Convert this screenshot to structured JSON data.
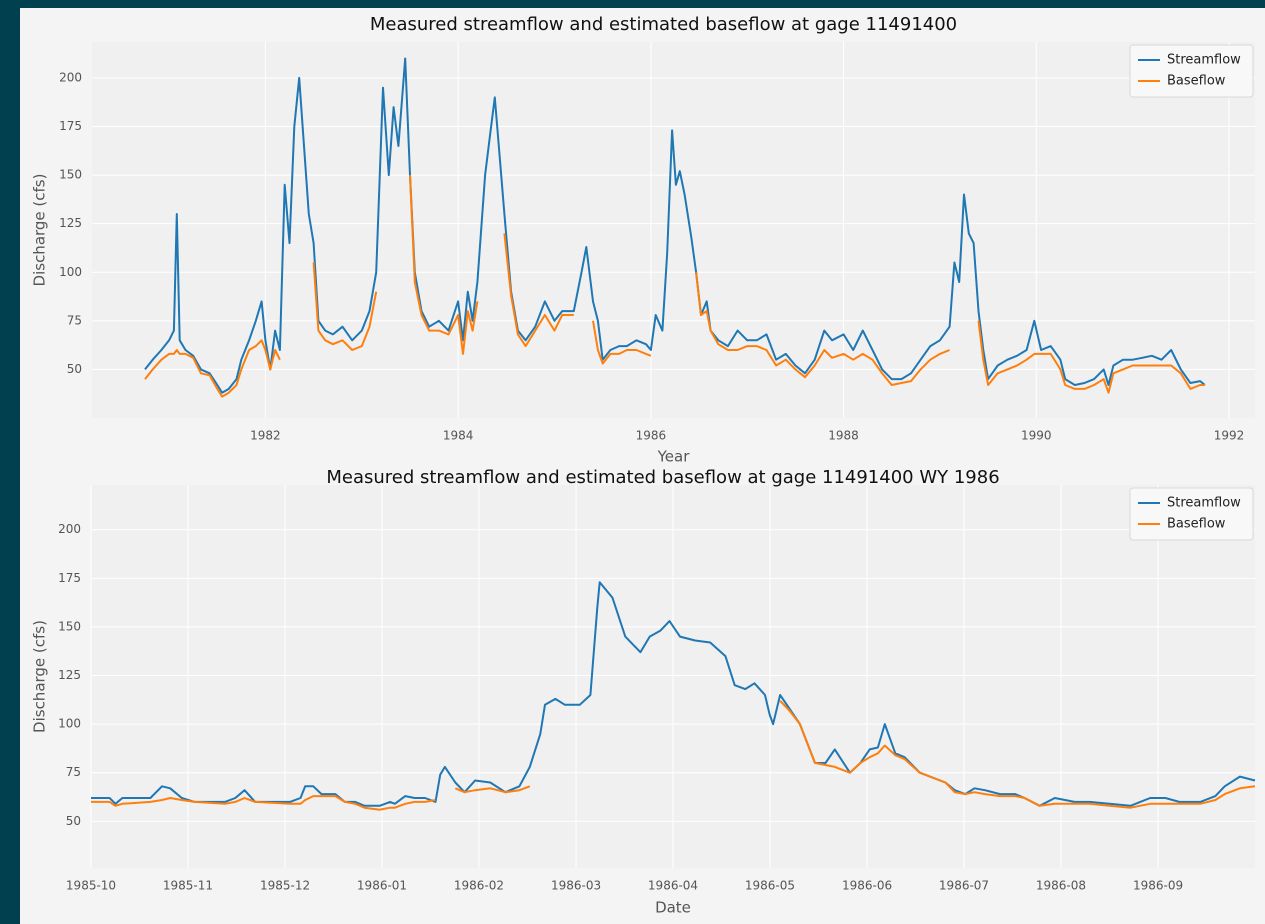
{
  "chart_data": [
    {
      "type": "line",
      "title": "Measured streamflow and estimated baseflow at gage 11491400",
      "xlabel": "Year",
      "ylabel": "Discharge (cfs)",
      "x": [
        1980.75,
        1980.83,
        1980.92,
        1981.0,
        1981.05,
        1981.08,
        1981.11,
        1981.17,
        1981.25,
        1981.33,
        1981.42,
        1981.5,
        1981.55,
        1981.62,
        1981.7,
        1981.75,
        1981.83,
        1981.9,
        1981.96,
        1982.0,
        1982.05,
        1982.1,
        1982.15,
        1982.2,
        1982.25,
        1982.3,
        1982.35,
        1982.4,
        1982.45,
        1982.5,
        1982.55,
        1982.62,
        1982.7,
        1982.8,
        1982.9,
        1983.0,
        1983.08,
        1983.15,
        1983.22,
        1983.28,
        1983.33,
        1983.38,
        1983.45,
        1983.5,
        1983.55,
        1983.62,
        1983.7,
        1983.8,
        1983.9,
        1984.0,
        1984.05,
        1984.1,
        1984.15,
        1984.2,
        1984.28,
        1984.33,
        1984.38,
        1984.43,
        1984.48,
        1984.55,
        1984.62,
        1984.7,
        1984.8,
        1984.9,
        1985.0,
        1985.08,
        1985.2,
        1985.28,
        1985.33,
        1985.4,
        1985.45,
        1985.5,
        1985.58,
        1985.67,
        1985.75,
        1985.85,
        1985.95,
        1986.0,
        1986.05,
        1986.12,
        1986.17,
        1986.22,
        1986.26,
        1986.3,
        1986.35,
        1986.42,
        1986.47,
        1986.52,
        1986.58,
        1986.62,
        1986.7,
        1986.8,
        1986.9,
        1987.0,
        1987.1,
        1987.2,
        1987.3,
        1987.4,
        1987.5,
        1987.6,
        1987.7,
        1987.8,
        1987.88,
        1988.0,
        1988.1,
        1988.2,
        1988.3,
        1988.4,
        1988.5,
        1988.6,
        1988.7,
        1988.8,
        1988.9,
        1989.0,
        1989.1,
        1989.15,
        1989.2,
        1989.25,
        1989.3,
        1989.35,
        1989.4,
        1989.45,
        1989.5,
        1989.6,
        1989.7,
        1989.8,
        1989.9,
        1989.98,
        1990.05,
        1990.15,
        1990.25,
        1990.3,
        1990.4,
        1990.5,
        1990.6,
        1990.7,
        1990.75,
        1990.8,
        1990.9,
        1991.0,
        1991.1,
        1991.2,
        1991.3,
        1991.4,
        1991.5,
        1991.6,
        1991.7,
        1991.75
      ],
      "series": [
        {
          "name": "Streamflow",
          "color": "#1f77b4",
          "values": [
            50,
            55,
            60,
            65,
            70,
            130,
            65,
            60,
            57,
            50,
            48,
            42,
            38,
            40,
            45,
            55,
            65,
            75,
            85,
            65,
            50,
            70,
            60,
            145,
            115,
            175,
            200,
            165,
            130,
            115,
            75,
            70,
            68,
            72,
            65,
            70,
            80,
            100,
            195,
            150,
            185,
            165,
            210,
            150,
            100,
            80,
            72,
            75,
            70,
            85,
            65,
            90,
            75,
            95,
            150,
            170,
            190,
            160,
            130,
            90,
            70,
            65,
            72,
            85,
            75,
            80,
            80,
            100,
            113,
            85,
            75,
            55,
            60,
            62,
            62,
            65,
            63,
            60,
            78,
            70,
            110,
            173,
            145,
            152,
            140,
            118,
            100,
            78,
            85,
            70,
            65,
            62,
            70,
            65,
            65,
            68,
            55,
            58,
            52,
            48,
            55,
            70,
            65,
            68,
            60,
            70,
            60,
            50,
            45,
            45,
            48,
            55,
            62,
            65,
            72,
            105,
            95,
            140,
            120,
            115,
            80,
            60,
            45,
            52,
            55,
            57,
            60,
            75,
            60,
            62,
            55,
            45,
            42,
            43,
            45,
            50,
            42,
            52,
            55,
            55,
            56,
            57,
            55,
            60,
            50,
            43,
            44,
            42
          ]
        },
        {
          "name": "Baseflow",
          "color": "#ff7f0e",
          "values": [
            45,
            50,
            55,
            58,
            58,
            60,
            58,
            58,
            56,
            48,
            47,
            40,
            36,
            38,
            42,
            50,
            60,
            62,
            65,
            60,
            50,
            60,
            55,
            null,
            105,
            null,
            null,
            null,
            null,
            105,
            70,
            65,
            63,
            65,
            60,
            62,
            72,
            90,
            null,
            null,
            120,
            null,
            null,
            150,
            95,
            78,
            70,
            70,
            68,
            78,
            58,
            80,
            70,
            85,
            null,
            null,
            null,
            null,
            120,
            88,
            68,
            62,
            70,
            78,
            70,
            78,
            78,
            null,
            null,
            75,
            60,
            53,
            58,
            58,
            60,
            60,
            58,
            57,
            null,
            66,
            null,
            null,
            null,
            null,
            null,
            null,
            100,
            78,
            80,
            70,
            63,
            60,
            60,
            62,
            62,
            60,
            52,
            55,
            50,
            46,
            52,
            60,
            56,
            58,
            55,
            58,
            55,
            48,
            42,
            43,
            44,
            50,
            55,
            58,
            60,
            null,
            null,
            null,
            null,
            null,
            75,
            55,
            42,
            48,
            50,
            52,
            55,
            58,
            58,
            58,
            50,
            42,
            40,
            40,
            42,
            45,
            38,
            48,
            50,
            52,
            52,
            52,
            52,
            52,
            48,
            40,
            42,
            42
          ]
        }
      ],
      "xlim": [
        1980.2,
        1992.27
      ],
      "ylim": [
        25,
        218.5
      ],
      "xticks": [
        1982,
        1984,
        1986,
        1988,
        1990,
        1992
      ],
      "yticks": [
        50,
        75,
        100,
        125,
        150,
        175,
        200
      ],
      "grid": true,
      "legend": "upper right"
    },
    {
      "type": "line",
      "title": "Measured streamflow and estimated baseflow at gage 11491400 WY 1986",
      "xlabel": "Date",
      "ylabel": "Discharge (cfs)",
      "x": [
        1985.75,
        1985.766,
        1985.771,
        1985.777,
        1985.801,
        1985.811,
        1985.818,
        1985.828,
        1985.839,
        1985.865,
        1985.874,
        1985.882,
        1985.891,
        1985.921,
        1985.93,
        1985.934,
        1985.941,
        1985.948,
        1985.96,
        1985.968,
        1985.977,
        1985.985,
        1985.998,
        1986.007,
        1986.011,
        1986.02,
        1986.028,
        1986.037,
        1986.046,
        1986.05,
        1986.054,
        1986.063,
        1986.071,
        1986.08,
        1986.093,
        1986.106,
        1986.118,
        1986.127,
        1986.136,
        1986.14,
        1986.149,
        1986.157,
        1986.17,
        1986.179,
        1986.185,
        1986.187,
        1986.198,
        1986.209,
        1986.222,
        1986.23,
        1986.239,
        1986.247,
        1986.256,
        1986.269,
        1986.282,
        1986.295,
        1986.303,
        1986.312,
        1986.32,
        1986.329,
        1986.333,
        1986.336,
        1986.342,
        1986.35,
        1986.359,
        1986.372,
        1986.381,
        1986.389,
        1986.402,
        1986.411,
        1986.419,
        1986.426,
        1986.432,
        1986.441,
        1986.449,
        1986.462,
        1986.484,
        1986.492,
        1986.501,
        1986.509,
        1986.518,
        1986.531,
        1986.544,
        1986.552,
        1986.565,
        1986.578,
        1986.595,
        1986.608,
        1986.625,
        1986.643,
        1986.66,
        1986.673,
        1986.685,
        1986.703,
        1986.716,
        1986.724,
        1986.737,
        1986.75
      ],
      "series": [
        {
          "name": "Streamflow",
          "color": "#1f77b4",
          "values": [
            62,
            62,
            59,
            62,
            62,
            68,
            67,
            62,
            60,
            60,
            62,
            66,
            60,
            60,
            62,
            68,
            68,
            64,
            64,
            60,
            60,
            58,
            58,
            60,
            59,
            63,
            62,
            62,
            60,
            74,
            78,
            70,
            65,
            71,
            70,
            65,
            68,
            78,
            95,
            110,
            113,
            110,
            110,
            115,
            160,
            173,
            165,
            145,
            137,
            145,
            148,
            153,
            145,
            143,
            142,
            135,
            120,
            118,
            121,
            115,
            105,
            100,
            115,
            108,
            100,
            80,
            80,
            87,
            75,
            80,
            87,
            88,
            100,
            85,
            83,
            75,
            70,
            66,
            64,
            67,
            66,
            64,
            64,
            62,
            58,
            62,
            60,
            60,
            59,
            58,
            62,
            62,
            60,
            60,
            63,
            68,
            73,
            71
          ]
        },
        {
          "name": "Baseflow",
          "color": "#ff7f0e",
          "values": [
            60,
            60,
            58,
            59,
            60,
            61,
            62,
            61,
            60,
            59,
            60,
            62,
            60,
            59,
            59,
            61,
            63,
            63,
            63,
            60,
            59,
            57,
            56,
            57,
            57,
            59,
            60,
            60,
            61,
            null,
            null,
            67,
            65,
            66,
            67,
            65,
            66,
            68,
            null,
            null,
            null,
            null,
            null,
            null,
            null,
            null,
            null,
            null,
            null,
            null,
            null,
            null,
            null,
            null,
            null,
            null,
            null,
            null,
            null,
            null,
            null,
            null,
            112,
            107,
            100,
            80,
            79,
            78,
            75,
            80,
            83,
            85,
            89,
            84,
            82,
            75,
            70,
            65,
            64,
            65,
            64,
            63,
            63,
            62,
            58,
            59,
            59,
            59,
            58,
            57,
            59,
            59,
            59,
            59,
            61,
            64,
            67,
            68
          ]
        }
      ],
      "xlim": [
        1985.75,
        1986.75
      ],
      "ylim": [
        26,
        223
      ],
      "xticks": [
        {
          "value": 1985.75,
          "label": "1985-10"
        },
        {
          "value": 1985.8333,
          "label": "1985-11"
        },
        {
          "value": 1985.9167,
          "label": "1985-12"
        },
        {
          "value": 1986,
          "label": "1986-01"
        },
        {
          "value": 1986.0833,
          "label": "1986-02"
        },
        {
          "value": 1986.1667,
          "label": "1986-03"
        },
        {
          "value": 1986.25,
          "label": "1986-04"
        },
        {
          "value": 1986.3333,
          "label": "1986-05"
        },
        {
          "value": 1986.4167,
          "label": "1986-06"
        },
        {
          "value": 1986.5,
          "label": "1986-07"
        },
        {
          "value": 1986.5833,
          "label": "1986-08"
        },
        {
          "value": 1986.6667,
          "label": "1986-09"
        }
      ],
      "yticks": [
        50,
        75,
        100,
        125,
        150,
        175,
        200
      ],
      "grid": true,
      "legend": "upper right"
    }
  ]
}
